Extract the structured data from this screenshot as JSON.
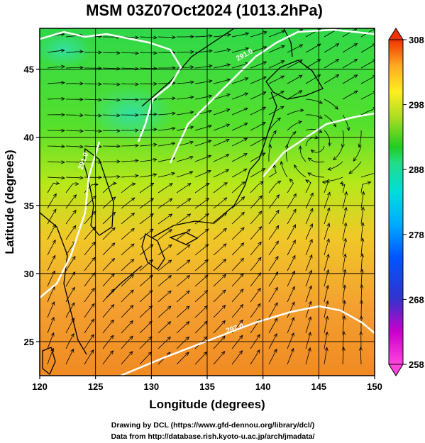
{
  "title": "MSM 03Z07Oct2024 (1013.2hPa)",
  "xlabel": "Longitude (degrees)",
  "ylabel": "Latitude (degrees)",
  "x_ticks": [
    "120",
    "125",
    "130",
    "135",
    "140",
    "145",
    "150"
  ],
  "y_ticks": [
    "25",
    "30",
    "35",
    "40",
    "45"
  ],
  "colorbar_ticks": [
    "258",
    "268",
    "278",
    "288",
    "298",
    "308"
  ],
  "credit_line1": "Drawing by DCL (https://www.gfd-dennou.org/library/dcl/)",
  "credit_line2": "Data from http://database.rish.kyoto-u.ac.jp/arch/jmadata/",
  "contour_labels": [
    "291.0",
    "291.0",
    "297.0"
  ],
  "colors": {
    "cold": "#cc00cc",
    "cool": "#00aaff",
    "mid": "#22cc22",
    "warm": "#ffdd00",
    "hot": "#ee3300"
  }
}
